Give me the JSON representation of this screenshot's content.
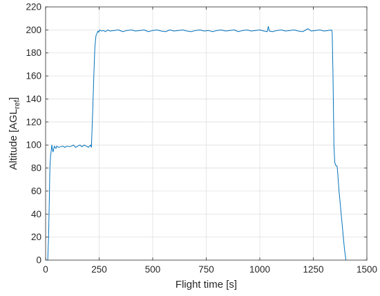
{
  "chart_data": {
    "type": "line",
    "xlabel": "Flight time [s]",
    "ylabel_main": "Altitude [AGL",
    "ylabel_sub": "ref",
    "ylabel_close": "]",
    "xlim": [
      0,
      1500
    ],
    "ylim": [
      0,
      220
    ],
    "xticks": [
      0,
      250,
      500,
      750,
      1000,
      1250,
      1500
    ],
    "yticks": [
      0,
      20,
      40,
      60,
      80,
      100,
      120,
      140,
      160,
      180,
      200,
      220
    ],
    "grid": true,
    "series": [
      {
        "color": "#0072BD",
        "x": [
          10,
          14,
          17,
          20,
          23,
          26,
          29,
          32,
          35,
          38,
          41,
          44,
          48,
          52,
          60,
          70,
          80,
          90,
          100,
          110,
          120,
          130,
          140,
          150,
          160,
          170,
          180,
          190,
          200,
          210,
          214,
          220,
          225,
          230,
          235,
          240,
          244,
          248,
          252,
          260,
          270,
          280,
          290,
          300,
          320,
          340,
          360,
          380,
          400,
          420,
          440,
          460,
          480,
          500,
          520,
          540,
          560,
          580,
          600,
          620,
          640,
          660,
          680,
          700,
          720,
          740,
          760,
          780,
          800,
          820,
          840,
          860,
          880,
          900,
          920,
          940,
          960,
          980,
          1000,
          1020,
          1035,
          1040,
          1045,
          1060,
          1080,
          1100,
          1120,
          1140,
          1160,
          1180,
          1200,
          1220,
          1225,
          1240,
          1260,
          1280,
          1300,
          1320,
          1335,
          1338,
          1342,
          1346,
          1350,
          1355,
          1360,
          1362,
          1366,
          1370,
          1375,
          1380,
          1385,
          1390,
          1395,
          1400,
          1402
        ],
        "y": [
          0,
          20,
          50,
          80,
          90,
          95,
          100,
          96,
          94,
          97,
          99,
          98,
          97,
          99,
          98,
          98.5,
          99,
          98,
          99,
          98.5,
          99,
          100,
          98,
          99,
          100,
          98.5,
          100,
          99,
          98,
          100,
          98,
          130,
          160,
          185,
          195,
          197,
          199,
          198,
          200,
          199,
          199.5,
          198.5,
          200,
          199,
          199.5,
          200,
          198.5,
          199.5,
          200,
          199,
          199.5,
          200,
          198.5,
          199.5,
          200,
          199,
          198.5,
          200,
          199,
          199.5,
          200,
          199,
          198.5,
          199.5,
          200,
          199,
          199.5,
          198.5,
          199.5,
          200,
          199,
          199.5,
          200,
          198.5,
          199.5,
          200,
          199,
          199.5,
          200,
          199,
          198.5,
          203,
          199,
          198.5,
          199.5,
          200,
          199,
          199.5,
          200,
          199,
          198.5,
          200.5,
          201,
          199,
          199.5,
          200,
          199,
          199.5,
          200,
          198,
          160,
          100,
          85,
          82,
          82,
          80,
          70,
          60,
          50,
          40,
          30,
          20,
          10,
          3,
          0
        ]
      }
    ]
  }
}
